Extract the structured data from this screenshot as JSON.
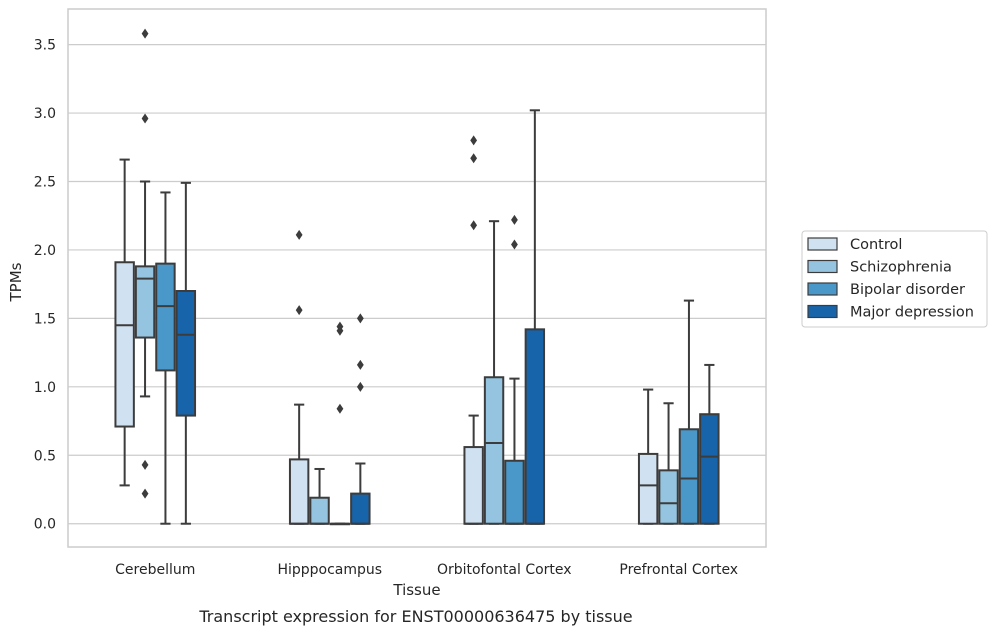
{
  "chart_data": {
    "type": "boxplot",
    "title": "",
    "caption": "Transcript expression for ENST00000636475 by tissue",
    "xlabel": "Tissue",
    "ylabel": "TPMs",
    "ylim": [
      -0.17,
      3.76
    ],
    "yticks": [
      0.0,
      0.5,
      1.0,
      1.5,
      2.0,
      2.5,
      3.0,
      3.5
    ],
    "ytick_labels": [
      "0.0",
      "0.5",
      "1.0",
      "1.5",
      "2.0",
      "2.5",
      "3.0",
      "3.5"
    ],
    "grid": "horizontal",
    "legend_position": "right",
    "categories": [
      "Cerebellum",
      "Hipppocampus",
      "Orbitofontal Cortex",
      "Prefrontal Cortex"
    ],
    "series": [
      {
        "name": "Control",
        "color": "#d0e1f2",
        "boxes": [
          {
            "q1": 0.71,
            "median": 1.45,
            "q3": 1.91,
            "whislo": 0.28,
            "whishi": 2.66,
            "fliers": []
          },
          {
            "q1": 0.0,
            "median": 0.0,
            "q3": 0.47,
            "whislo": 0.0,
            "whishi": 0.87,
            "fliers": [
              1.56,
              2.11
            ]
          },
          {
            "q1": 0.0,
            "median": 0.0,
            "q3": 0.56,
            "whislo": 0.0,
            "whishi": 0.79,
            "fliers": [
              2.18,
              2.67,
              2.8
            ]
          },
          {
            "q1": 0.0,
            "median": 0.28,
            "q3": 0.51,
            "whislo": 0.0,
            "whishi": 0.98,
            "fliers": []
          }
        ]
      },
      {
        "name": "Schizophrenia",
        "color": "#94c4df",
        "boxes": [
          {
            "q1": 1.36,
            "median": 1.79,
            "q3": 1.88,
            "whislo": 0.93,
            "whishi": 2.5,
            "fliers": [
              0.22,
              0.43,
              2.96,
              3.58
            ]
          },
          {
            "q1": 0.0,
            "median": 0.0,
            "q3": 0.19,
            "whislo": 0.0,
            "whishi": 0.4,
            "fliers": []
          },
          {
            "q1": 0.0,
            "median": 0.59,
            "q3": 1.07,
            "whislo": 0.0,
            "whishi": 2.21,
            "fliers": []
          },
          {
            "q1": 0.0,
            "median": 0.15,
            "q3": 0.39,
            "whislo": 0.0,
            "whishi": 0.88,
            "fliers": []
          }
        ]
      },
      {
        "name": "Bipolar disorder",
        "color": "#4a98c9",
        "boxes": [
          {
            "q1": 1.12,
            "median": 1.59,
            "q3": 1.9,
            "whislo": 0.0,
            "whishi": 2.42,
            "fliers": []
          },
          {
            "q1": 0.0,
            "median": 0.0,
            "q3": 0.0,
            "whislo": 0.0,
            "whishi": 0.0,
            "fliers": [
              0.84,
              1.41,
              1.44
            ]
          },
          {
            "q1": 0.0,
            "median": 0.0,
            "q3": 0.46,
            "whislo": 0.0,
            "whishi": 1.06,
            "fliers": [
              2.04,
              2.22
            ]
          },
          {
            "q1": 0.0,
            "median": 0.33,
            "q3": 0.69,
            "whislo": 0.0,
            "whishi": 1.63,
            "fliers": []
          }
        ]
      },
      {
        "name": "Major depression",
        "color": "#1764ab",
        "boxes": [
          {
            "q1": 0.79,
            "median": 1.38,
            "q3": 1.7,
            "whislo": 0.0,
            "whishi": 2.49,
            "fliers": []
          },
          {
            "q1": 0.0,
            "median": 0.0,
            "q3": 0.22,
            "whislo": 0.0,
            "whishi": 0.44,
            "fliers": [
              1.0,
              1.16,
              1.5
            ]
          },
          {
            "q1": 0.0,
            "median": 0.0,
            "q3": 1.42,
            "whislo": 0.0,
            "whishi": 3.02,
            "fliers": []
          },
          {
            "q1": 0.0,
            "median": 0.49,
            "q3": 0.8,
            "whislo": 0.0,
            "whishi": 1.16,
            "fliers": []
          }
        ]
      }
    ]
  }
}
